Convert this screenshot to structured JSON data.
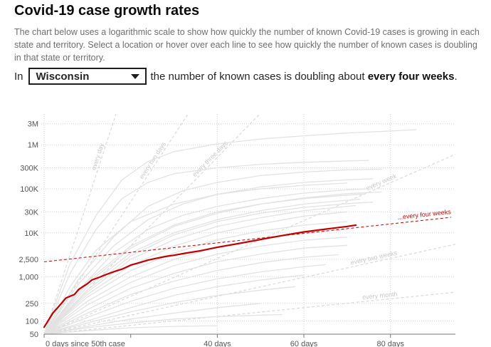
{
  "header": {
    "title": "Covid-19 case growth rates",
    "description": "The chart below uses a logarithmic scale to show how quickly the number of known Covid-19 cases is growing in each state and territory. Select a location or hover over each line to see how quickly the number of known cases is doubling in that state or territory."
  },
  "selector": {
    "prefix": "In",
    "selected": "Wisconsin",
    "sentence_start": "the number of known cases is doubling about",
    "sentence_bold": "every four weeks",
    "sentence_end": "."
  },
  "colors": {
    "highlight": "#c00000",
    "background_lines": "#e2e2e2",
    "guides": "#d9d9d9",
    "grid": "#d0d0d0"
  },
  "chart_data": {
    "type": "line",
    "title": "Covid-19 case growth rates",
    "xlabel": "days since 50th case",
    "ylabel": "",
    "scale_y": "log",
    "xlim": [
      0,
      95
    ],
    "ylim": [
      50,
      5000000
    ],
    "x_ticks": [
      {
        "value": 0,
        "label": "0 days since 50th case"
      },
      {
        "value": 40,
        "label": "40 days"
      },
      {
        "value": 60,
        "label": "60 days"
      },
      {
        "value": 80,
        "label": "80 days"
      }
    ],
    "y_ticks": [
      {
        "value": 50,
        "label": "50"
      },
      {
        "value": 100,
        "label": "100"
      },
      {
        "value": 250,
        "label": "250"
      },
      {
        "value": 1000,
        "label": "1,000"
      },
      {
        "value": 2500,
        "label": "2,500"
      },
      {
        "value": 10000,
        "label": "10K"
      },
      {
        "value": 30000,
        "label": "30K"
      },
      {
        "value": 100000,
        "label": "100K"
      },
      {
        "value": 300000,
        "label": "300K"
      },
      {
        "value": 1000000,
        "label": "1M"
      },
      {
        "value": 3000000,
        "label": "3M"
      }
    ],
    "guides": [
      {
        "label": "every day",
        "doubling_days": 1
      },
      {
        "label": "every two days",
        "doubling_days": 2
      },
      {
        "label": "every three days",
        "doubling_days": 3
      },
      {
        "label": "every week",
        "doubling_days": 7
      },
      {
        "label": "every two weeks",
        "doubling_days": 14
      },
      {
        "label": "every month",
        "doubling_days": 30
      }
    ],
    "reference": {
      "label": "...every four weeks",
      "start_value": 2200,
      "doubling_days": 28,
      "x_end": 94
    },
    "highlight_series": {
      "name": "Wisconsin",
      "x": [
        0,
        2,
        4,
        5,
        7,
        8,
        10,
        11,
        13,
        14,
        16,
        18,
        20,
        22,
        24,
        26,
        28,
        30,
        33,
        36,
        40,
        44,
        48,
        52,
        56,
        60,
        64,
        68,
        70,
        72
      ],
      "y": [
        72,
        150,
        250,
        330,
        400,
        520,
        700,
        850,
        1000,
        1100,
        1300,
        1500,
        1850,
        2100,
        2400,
        2650,
        2900,
        3100,
        3500,
        3900,
        4700,
        5500,
        6500,
        7700,
        9000,
        10500,
        11800,
        13200,
        14000,
        15000
      ]
    },
    "background_series": [
      {
        "name": "S1",
        "x": [
          0,
          6,
          12,
          18,
          24,
          30,
          40,
          50,
          60,
          70,
          80,
          86
        ],
        "y": [
          50,
          2000,
          25000,
          160000,
          420000,
          700000,
          1050000,
          1350000,
          1600000,
          1850000,
          2050000,
          2200000
        ]
      },
      {
        "name": "S2",
        "x": [
          0,
          6,
          12,
          18,
          24,
          30,
          40,
          50,
          60,
          70,
          75
        ],
        "y": [
          50,
          1200,
          12000,
          60000,
          140000,
          220000,
          300000,
          360000,
          400000,
          430000,
          440000
        ]
      },
      {
        "name": "S3",
        "x": [
          0,
          8,
          16,
          24,
          32,
          40,
          50,
          60,
          70,
          78
        ],
        "y": [
          50,
          900,
          8000,
          40000,
          90000,
          140000,
          200000,
          240000,
          270000,
          280000
        ]
      },
      {
        "name": "S4",
        "x": [
          0,
          8,
          16,
          24,
          32,
          40,
          50,
          60,
          70,
          76
        ],
        "y": [
          50,
          700,
          5000,
          20000,
          45000,
          75000,
          110000,
          140000,
          160000,
          170000
        ]
      },
      {
        "name": "S5",
        "x": [
          0,
          8,
          16,
          24,
          32,
          40,
          50,
          60,
          70,
          75
        ],
        "y": [
          50,
          500,
          3500,
          12000,
          25000,
          40000,
          60000,
          80000,
          95000,
          100000
        ]
      },
      {
        "name": "S6",
        "x": [
          0,
          10,
          20,
          30,
          40,
          50,
          60,
          70,
          74
        ],
        "y": [
          50,
          800,
          5000,
          15000,
          30000,
          45000,
          60000,
          72000,
          76000
        ]
      },
      {
        "name": "S7",
        "x": [
          0,
          10,
          20,
          30,
          40,
          50,
          60,
          70,
          73
        ],
        "y": [
          50,
          600,
          3500,
          10000,
          20000,
          32000,
          45000,
          55000,
          58000
        ]
      },
      {
        "name": "S8",
        "x": [
          0,
          10,
          20,
          30,
          40,
          50,
          60,
          70,
          72
        ],
        "y": [
          50,
          450,
          2500,
          7000,
          14000,
          22000,
          32000,
          40000,
          42000
        ]
      },
      {
        "name": "S9",
        "x": [
          0,
          10,
          20,
          30,
          40,
          50,
          60,
          70
        ],
        "y": [
          50,
          400,
          1800,
          5000,
          10000,
          16000,
          24000,
          30000
        ]
      },
      {
        "name": "S10",
        "x": [
          0,
          10,
          20,
          30,
          40,
          50,
          60,
          70
        ],
        "y": [
          50,
          350,
          1400,
          3500,
          7000,
          11000,
          15000,
          18000
        ]
      },
      {
        "name": "S11",
        "x": [
          0,
          10,
          20,
          30,
          40,
          50,
          60,
          70
        ],
        "y": [
          50,
          280,
          1000,
          2500,
          4800,
          7500,
          10000,
          12000
        ]
      },
      {
        "name": "S12",
        "x": [
          0,
          10,
          20,
          30,
          40,
          50,
          60,
          70
        ],
        "y": [
          50,
          230,
          750,
          1800,
          3300,
          5000,
          6800,
          8000
        ]
      },
      {
        "name": "S13",
        "x": [
          0,
          10,
          20,
          30,
          40,
          50,
          60,
          70
        ],
        "y": [
          50,
          180,
          550,
          1200,
          2200,
          3300,
          4500,
          5200
        ]
      },
      {
        "name": "S14",
        "x": [
          0,
          10,
          20,
          30,
          40,
          50,
          60,
          68
        ],
        "y": [
          50,
          150,
          400,
          800,
          1400,
          2100,
          2800,
          3200
        ]
      },
      {
        "name": "S15",
        "x": [
          0,
          10,
          20,
          30,
          40,
          50,
          60,
          65
        ],
        "y": [
          50,
          120,
          280,
          550,
          900,
          1300,
          1700,
          1900
        ]
      },
      {
        "name": "S16",
        "x": [
          0,
          10,
          20,
          30,
          40,
          50,
          60
        ],
        "y": [
          50,
          100,
          200,
          380,
          600,
          850,
          1100
        ]
      },
      {
        "name": "S17",
        "x": [
          0,
          10,
          20,
          30,
          40,
          50,
          58
        ],
        "y": [
          50,
          90,
          160,
          260,
          380,
          500,
          600
        ]
      },
      {
        "name": "S18",
        "x": [
          0,
          10,
          20,
          30,
          40,
          50
        ],
        "y": [
          50,
          75,
          110,
          150,
          200,
          250
        ]
      },
      {
        "name": "S19",
        "x": [
          0,
          10,
          20,
          30,
          40,
          50,
          60,
          70,
          78
        ],
        "y": [
          50,
          700,
          4500,
          14000,
          28000,
          45000,
          62000,
          78000,
          85000
        ]
      },
      {
        "name": "S20",
        "x": [
          0,
          10,
          20,
          30,
          40,
          50,
          60,
          70,
          76
        ],
        "y": [
          50,
          500,
          3000,
          9000,
          18000,
          28000,
          38000,
          46000,
          50000
        ]
      },
      {
        "name": "S21",
        "x": [
          0,
          6,
          12,
          20,
          30,
          40,
          50,
          60,
          70
        ],
        "y": [
          50,
          600,
          4000,
          18000,
          45000,
          75000,
          100000,
          120000,
          135000
        ]
      },
      {
        "name": "S22",
        "x": [
          0,
          10,
          20,
          30,
          40,
          50,
          55
        ],
        "y": [
          50,
          70,
          90,
          110,
          125,
          135,
          140
        ]
      },
      {
        "name": "S23",
        "x": [
          0,
          10,
          20,
          30,
          40
        ],
        "y": [
          50,
          60,
          70,
          75,
          78
        ]
      }
    ]
  }
}
